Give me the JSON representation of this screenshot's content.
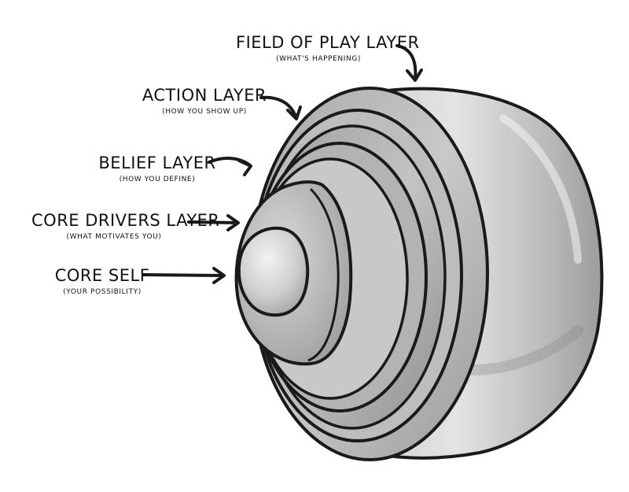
{
  "layers": [
    {
      "id": "field",
      "title": "FIELD OF PLAY LAYER",
      "subtitle": "(WHAT'S HAPPENING)"
    },
    {
      "id": "action",
      "title": "ACTION LAYER",
      "subtitle": "(HOW YOU SHOW UP)"
    },
    {
      "id": "belief",
      "title": "BELIEF LAYER",
      "subtitle": "(HOW YOU DEFINE)"
    },
    {
      "id": "drivers",
      "title": "CORE DRIVERS LAYER",
      "subtitle": "(WHAT MOTIVATES YOU)"
    },
    {
      "id": "core",
      "title": "CORE SELF",
      "subtitle": "(YOUR POSSIBILITY)"
    }
  ],
  "colors": {
    "outline": "#1a1a1a",
    "shell_light": "#d9d9d9",
    "shell_mid": "#b8b8b8",
    "shell_dark": "#8e8e8e",
    "core_light": "#e6e6e6"
  }
}
